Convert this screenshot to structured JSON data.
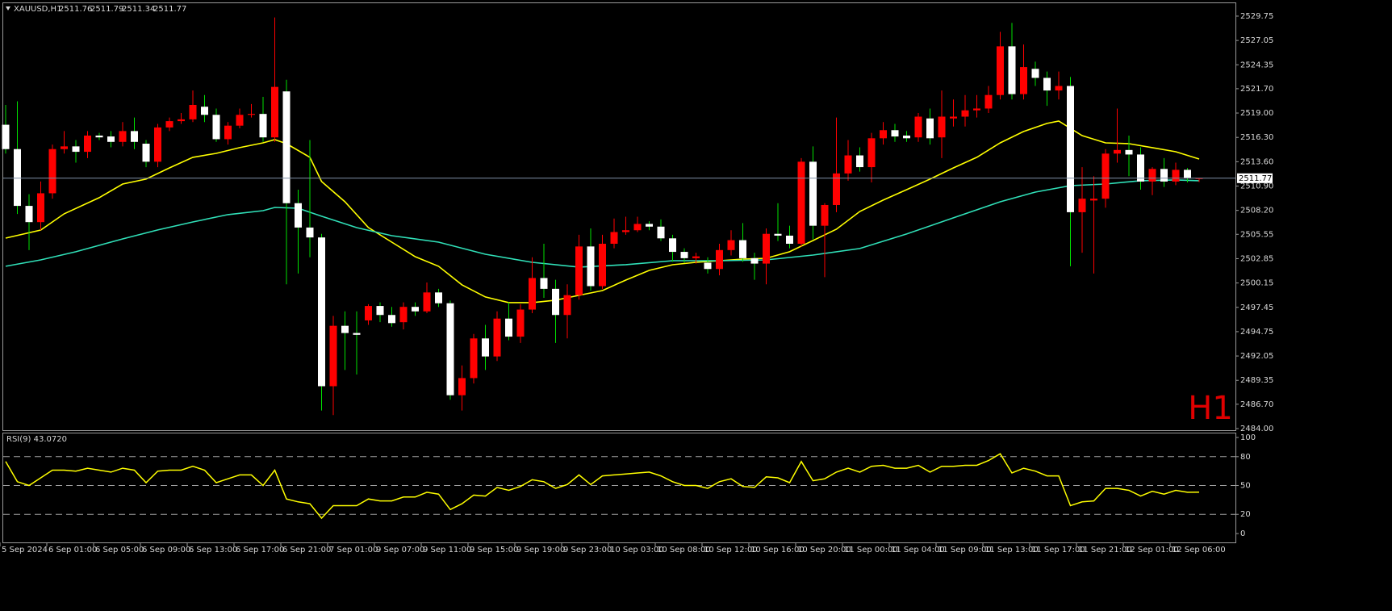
{
  "header": {
    "symbol": "XAUUSD,H1"
  },
  "watermark": "H1",
  "chart_data": [
    {
      "type": "candlestick",
      "categories": [
        "5 Sep 2024",
        null,
        null,
        null,
        "6 Sep 01:00",
        null,
        null,
        null,
        "6 Sep 05:00",
        null,
        null,
        null,
        "6 Sep 09:00",
        null,
        null,
        null,
        "6 Sep 13:00",
        null,
        null,
        null,
        "6 Sep 17:00",
        null,
        null,
        null,
        "6 Sep 21:00",
        null,
        null,
        null,
        "7 Sep 01:00",
        null,
        null,
        null,
        "9 Sep 07:00",
        null,
        null,
        null,
        "9 Sep 11:00",
        null,
        null,
        null,
        "9 Sep 15:00",
        null,
        null,
        null,
        "9 Sep 19:00",
        null,
        null,
        null,
        "9 Sep 23:00",
        null,
        null,
        null,
        "10 Sep 03:00",
        null,
        null,
        null,
        "10 Sep 08:00",
        null,
        null,
        null,
        "10 Sep 12:00",
        null,
        null,
        null,
        "10 Sep 16:00",
        null,
        null,
        null,
        "10 Sep 20:00",
        null,
        null,
        null,
        "11 Sep 00:00",
        null,
        null,
        null,
        "11 Sep 04:00",
        null,
        null,
        null,
        "11 Sep 09:00",
        null,
        null,
        null,
        "11 Sep 13:00",
        null,
        null,
        null,
        "11 Sep 17:00",
        null,
        null,
        null,
        "11 Sep 21:00",
        null,
        null,
        null,
        "12 Sep 01:00",
        null,
        null,
        null,
        "12 Sep 06:00",
        null,
        null
      ],
      "open": [
        2517.7,
        2515.0,
        2508.7,
        2506.9,
        2510.1,
        2515.0,
        2515.3,
        2514.7,
        2516.5,
        2516.4,
        2515.8,
        2517.0,
        2515.6,
        2513.6,
        2517.4,
        2518.1,
        2518.3,
        2519.7,
        2518.8,
        2516.1,
        2517.6,
        2518.8,
        2518.9,
        2516.3,
        2521.4,
        2509.0,
        2506.3,
        2505.2,
        2488.7,
        2495.4,
        2494.6,
        2496.0,
        2497.6,
        2496.6,
        2495.8,
        2497.5,
        2497.0,
        2499.1,
        2497.9,
        2487.7,
        2489.6,
        2494.0,
        2492.0,
        2496.2,
        2494.2,
        2497.2,
        2500.7,
        2499.5,
        2496.6,
        2498.8,
        2504.2,
        2499.8,
        2504.5,
        2505.8,
        2506.0,
        2506.7,
        2506.4,
        2505.1,
        2503.6,
        2502.9,
        2502.4,
        2501.7,
        2503.8,
        2504.9,
        2502.9,
        2502.3,
        2505.6,
        2505.4,
        2504.5,
        2513.6,
        2506.5,
        2508.8,
        2512.3,
        2514.3,
        2513.0,
        2516.2,
        2517.1,
        2516.5,
        2516.3,
        2518.4,
        2516.3,
        2518.4,
        2518.6,
        2519.3,
        2519.5,
        2521.0,
        2526.4,
        2521.1,
        2523.9,
        2522.9,
        2521.5,
        2522.0,
        2508.0,
        2509.3,
        2509.5,
        2514.5,
        2514.9,
        2514.4,
        2511.4,
        2512.8,
        2511.4,
        2512.7,
        2511.76
      ],
      "high": [
        2519.9,
        2520.3,
        2510.0,
        2511.4,
        2515.5,
        2517.0,
        2516.0,
        2517.0,
        2516.8,
        2517.0,
        2518.0,
        2518.5,
        2516.0,
        2517.8,
        2518.5,
        2519.0,
        2521.5,
        2521.0,
        2519.5,
        2518.0,
        2519.5,
        2520.0,
        2520.8,
        2529.6,
        2522.7,
        2510.5,
        2516.0,
        2505.6,
        2496.5,
        2497.0,
        2497.0,
        2497.8,
        2498.0,
        2497.5,
        2498.0,
        2498.0,
        2500.2,
        2499.5,
        2498.2,
        2491.0,
        2494.5,
        2495.5,
        2497.0,
        2498.0,
        2497.8,
        2503.0,
        2504.5,
        2500.5,
        2500.0,
        2505.5,
        2506.2,
        2505.5,
        2507.3,
        2507.5,
        2507.5,
        2507.0,
        2507.2,
        2505.5,
        2504.0,
        2503.5,
        2503.0,
        2504.5,
        2506.0,
        2506.8,
        2503.5,
        2506.2,
        2509.0,
        2506.5,
        2514.0,
        2515.3,
        2509.0,
        2518.5,
        2516.0,
        2515.2,
        2516.8,
        2518.0,
        2517.8,
        2517.0,
        2519.0,
        2519.5,
        2521.5,
        2520.5,
        2521.0,
        2521.0,
        2522.0,
        2528.0,
        2529.0,
        2526.6,
        2524.7,
        2523.6,
        2523.6,
        2523.0,
        2513.0,
        2512.0,
        2515.0,
        2519.5,
        2516.5,
        2515.2,
        2513.0,
        2514.0,
        2513.5,
        2512.9,
        2511.79
      ],
      "low": [
        2514.5,
        2507.8,
        2503.8,
        2506.0,
        2509.5,
        2514.5,
        2513.5,
        2514.0,
        2516.0,
        2515.2,
        2515.3,
        2515.0,
        2513.0,
        2513.0,
        2517.0,
        2517.8,
        2518.0,
        2518.0,
        2515.8,
        2515.5,
        2517.3,
        2518.5,
        2515.8,
        2515.8,
        2500.0,
        2501.2,
        2503.0,
        2486.0,
        2485.5,
        2490.5,
        2490.0,
        2495.5,
        2495.8,
        2495.3,
        2495.0,
        2496.5,
        2496.8,
        2497.5,
        2487.2,
        2486.0,
        2489.0,
        2490.5,
        2491.5,
        2493.8,
        2493.5,
        2496.8,
        2498.5,
        2493.5,
        2494.0,
        2498.3,
        2499.3,
        2499.5,
        2504.0,
        2505.5,
        2505.8,
        2506.0,
        2504.8,
        2502.5,
        2502.4,
        2502.3,
        2501.2,
        2501.0,
        2503.2,
        2502.5,
        2500.5,
        2500.0,
        2504.8,
        2504.0,
        2504.2,
        2505.0,
        2500.8,
        2508.0,
        2511.5,
        2512.5,
        2511.3,
        2515.5,
        2515.8,
        2515.8,
        2515.8,
        2515.5,
        2514.0,
        2517.5,
        2517.5,
        2518.5,
        2519.0,
        2520.5,
        2520.5,
        2520.5,
        2522.0,
        2519.8,
        2520.5,
        2502.0,
        2503.5,
        2501.2,
        2508.5,
        2513.5,
        2512.0,
        2510.5,
        2509.9,
        2510.8,
        2511.0,
        2511.3,
        2511.34
      ],
      "close": [
        2515.0,
        2508.7,
        2506.9,
        2510.1,
        2515.0,
        2515.3,
        2514.7,
        2516.5,
        2516.3,
        2515.8,
        2517.0,
        2515.8,
        2513.6,
        2517.4,
        2518.1,
        2518.3,
        2519.9,
        2518.8,
        2516.1,
        2517.6,
        2518.8,
        2518.9,
        2516.3,
        2521.9,
        2509.0,
        2506.3,
        2505.2,
        2488.7,
        2495.4,
        2494.6,
        2494.4,
        2497.6,
        2496.6,
        2495.7,
        2497.5,
        2497.0,
        2499.1,
        2497.9,
        2487.7,
        2489.6,
        2494.0,
        2492.0,
        2496.2,
        2494.2,
        2497.2,
        2500.7,
        2499.5,
        2496.6,
        2498.8,
        2504.2,
        2499.8,
        2504.5,
        2505.8,
        2506.0,
        2506.7,
        2506.4,
        2505.1,
        2503.6,
        2502.9,
        2503.1,
        2501.7,
        2503.8,
        2504.9,
        2502.9,
        2502.3,
        2505.6,
        2505.4,
        2504.5,
        2513.6,
        2506.5,
        2508.8,
        2512.3,
        2514.3,
        2513.0,
        2516.2,
        2517.1,
        2516.4,
        2516.2,
        2518.6,
        2516.2,
        2518.6,
        2518.6,
        2519.3,
        2519.5,
        2521.0,
        2526.4,
        2521.1,
        2524.1,
        2522.9,
        2521.5,
        2522.0,
        2508.0,
        2509.5,
        2509.5,
        2514.5,
        2514.9,
        2514.4,
        2511.4,
        2512.8,
        2511.4,
        2512.7,
        2511.8,
        2511.77
      ],
      "up_color": "#ff0000",
      "down_color": "#ffffff",
      "wick_color": "#00e000",
      "overlays": [
        {
          "color": "#ffff00",
          "x": [
            0,
            3,
            5,
            8,
            10,
            12,
            14,
            16,
            18,
            20,
            22,
            23,
            24,
            26,
            27,
            29,
            31,
            33,
            35,
            37,
            39,
            41,
            43,
            45,
            47,
            49,
            51,
            53,
            55,
            57,
            59,
            61,
            63,
            65,
            67,
            69,
            71,
            73,
            75,
            77,
            79,
            81,
            83,
            85,
            87,
            89,
            90,
            92,
            94,
            96,
            98,
            100,
            102
          ],
          "values": [
            2505.13,
            2506.02,
            2507.82,
            2509.61,
            2511.13,
            2511.67,
            2512.92,
            2514.09,
            2514.53,
            2515.16,
            2515.69,
            2516.05,
            2515.6,
            2514.09,
            2511.4,
            2509.16,
            2506.3,
            2504.68,
            2503.07,
            2502.0,
            2499.94,
            2498.6,
            2497.97,
            2497.97,
            2498.24,
            2498.78,
            2499.31,
            2500.47,
            2501.55,
            2502.17,
            2502.44,
            2502.62,
            2502.8,
            2502.89,
            2503.61,
            2504.86,
            2506.11,
            2508.08,
            2509.34,
            2510.5,
            2511.67,
            2512.92,
            2514.09,
            2515.69,
            2516.95,
            2517.85,
            2518.11,
            2516.5,
            2515.69,
            2515.6,
            2515.16,
            2514.71,
            2513.9
          ]
        },
        {
          "color": "#30e0b8",
          "x": [
            0,
            3,
            6,
            10,
            13,
            16,
            19,
            22,
            23,
            25,
            27,
            30,
            33,
            37,
            41,
            45,
            49,
            53,
            57,
            61,
            65,
            69,
            73,
            77,
            81,
            85,
            88,
            91,
            94,
            97,
            100,
            102
          ],
          "values": [
            2502.0,
            2502.71,
            2503.61,
            2505.04,
            2506.03,
            2506.92,
            2507.73,
            2508.17,
            2508.53,
            2508.44,
            2507.55,
            2506.29,
            2505.4,
            2504.68,
            2503.34,
            2502.44,
            2501.91,
            2502.18,
            2502.62,
            2502.62,
            2502.71,
            2503.25,
            2503.97,
            2505.58,
            2507.37,
            2509.16,
            2510.23,
            2510.95,
            2511.13,
            2511.49,
            2511.58,
            2511.49
          ]
        }
      ],
      "price_line_color": "#8090a8",
      "ylim": [
        2483.82,
        2531.09
      ],
      "yticks": [
        2529.75,
        2527.05,
        2524.35,
        {
          "value": 2521.7,
          "label": "2521.70"
        },
        {
          "value": 2519,
          "label": "2519.00"
        },
        {
          "value": 2516.3,
          "label": "2516.30"
        },
        {
          "value": 2513.6,
          "label": "2513.60"
        },
        {
          "value": 2510.9,
          "label": "2510.90"
        },
        {
          "value": 2508.2,
          "label": "2508.20"
        },
        2505.55,
        2502.85,
        2500.15,
        2497.45,
        2494.75,
        2492.05,
        2489.35,
        {
          "value": 2486.7,
          "label": "2486.70"
        },
        {
          "value": 2484,
          "label": "2484.00"
        }
      ]
    },
    {
      "type": "line",
      "title": "RSI(9) 43.0720",
      "color": "#ffff00",
      "values": [
        75,
        54,
        50,
        58,
        66,
        66,
        65,
        68,
        66,
        64,
        68,
        66,
        53,
        65,
        66,
        66,
        70,
        66,
        53,
        57,
        61,
        61,
        50,
        66,
        36,
        33,
        31,
        16,
        29,
        29,
        29,
        36,
        34,
        34,
        38,
        38,
        43,
        41,
        25,
        31,
        40,
        39,
        48,
        45,
        49,
        56,
        54,
        47,
        51,
        61,
        51,
        60,
        61,
        62,
        63,
        64,
        60,
        54,
        50,
        50,
        47,
        54,
        57,
        49,
        48,
        59,
        58,
        53,
        75,
        55,
        57,
        64,
        68,
        64,
        70,
        71,
        68,
        68,
        71,
        64,
        70,
        70,
        71,
        71,
        76,
        83,
        63,
        68,
        65,
        60,
        60,
        29,
        33,
        34,
        47,
        47,
        45,
        39,
        44,
        41,
        45,
        43,
        43.072
      ],
      "ylim": [
        -9.2,
        104.2
      ],
      "yticks": [
        100,
        80,
        50,
        20,
        0
      ],
      "levels": [
        80,
        50,
        20
      ]
    }
  ]
}
